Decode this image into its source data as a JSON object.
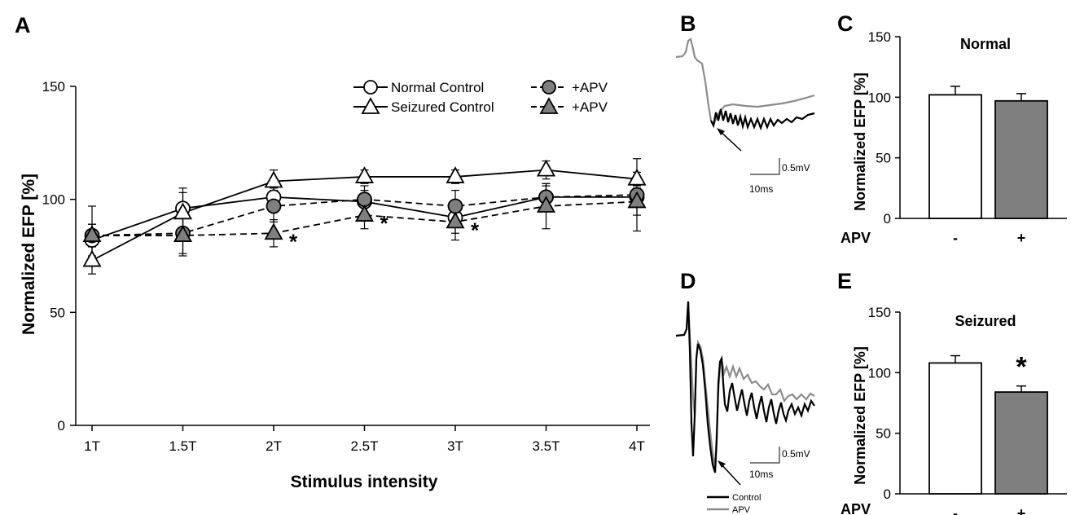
{
  "panels": {
    "a": "A",
    "b": "B",
    "c": "C",
    "d": "D",
    "e": "E"
  },
  "colors": {
    "black": "#000000",
    "gray_fill": "#7f7f7f",
    "trace_gray": "#8c8c8c",
    "white": "#ffffff"
  },
  "chart_data": [
    {
      "type": "line",
      "panel": "A",
      "xlabel": "Stimulus intensity",
      "ylabel": "Normalized EFP [%]",
      "ylim": [
        0,
        150
      ],
      "yticks": [
        0,
        50,
        100,
        150
      ],
      "categories": [
        "1T",
        "1.5T",
        "2T",
        "2.5T",
        "3T",
        "3.5T",
        "4T"
      ],
      "legend": {
        "placement": "top-right"
      },
      "series": [
        {
          "name": "Normal Control",
          "marker": "circle",
          "fill": "white",
          "dash": "solid",
          "values": [
            82,
            96,
            101,
            99,
            92,
            101,
            101
          ],
          "errors": [
            7,
            9,
            4,
            5,
            7,
            5,
            3
          ]
        },
        {
          "name": "Seizured Control",
          "marker": "triangle",
          "fill": "white",
          "dash": "solid",
          "values": [
            73,
            94,
            108,
            110,
            110,
            113,
            109
          ],
          "errors": [
            6,
            9,
            5,
            3,
            3,
            4,
            3
          ]
        },
        {
          "name": "+APV",
          "marker": "circle",
          "fill": "gray",
          "dash": "dashed",
          "values": [
            84,
            85,
            97,
            100,
            97,
            101,
            102
          ],
          "errors": [
            13,
            10,
            7,
            6,
            7,
            6,
            16
          ]
        },
        {
          "name": "+APV",
          "marker": "triangle",
          "fill": "gray",
          "dash": "dashed",
          "values": [
            84,
            84,
            85,
            93,
            90,
            97,
            99
          ],
          "errors": [
            5,
            8,
            6,
            6,
            8,
            10,
            6
          ]
        }
      ],
      "significance": [
        {
          "category": "2T",
          "label": "*"
        },
        {
          "category": "2.5T",
          "label": "*"
        },
        {
          "category": "3T",
          "label": "*"
        }
      ]
    },
    {
      "type": "bar",
      "panel": "C",
      "title": "Normal",
      "ylabel": "Normalized EFP [%]",
      "ylim": [
        0,
        150
      ],
      "yticks": [
        0,
        50,
        100,
        150
      ],
      "group_label": "APV",
      "categories": [
        "-",
        "+"
      ],
      "values": [
        102,
        97
      ],
      "errors": [
        7,
        6
      ],
      "fills": [
        "white",
        "gray"
      ]
    },
    {
      "type": "bar",
      "panel": "E",
      "title": "Seizured",
      "ylabel": "Normalized EFP [%]",
      "ylim": [
        0,
        150
      ],
      "yticks": [
        0,
        50,
        100,
        150
      ],
      "group_label": "APV",
      "categories": [
        "-",
        "+"
      ],
      "values": [
        108,
        84
      ],
      "errors": [
        6,
        5
      ],
      "fills": [
        "white",
        "gray"
      ],
      "significance": [
        {
          "category": "+",
          "label": "*"
        }
      ]
    }
  ],
  "traces": {
    "b": {
      "scale_v": "0.5mV",
      "scale_t": "10ms"
    },
    "d": {
      "scale_v": "0.5mV",
      "scale_t": "10ms",
      "legend": [
        {
          "label": "Control",
          "color": "#000000"
        },
        {
          "label": "APV",
          "color": "#8c8c8c"
        }
      ]
    }
  }
}
